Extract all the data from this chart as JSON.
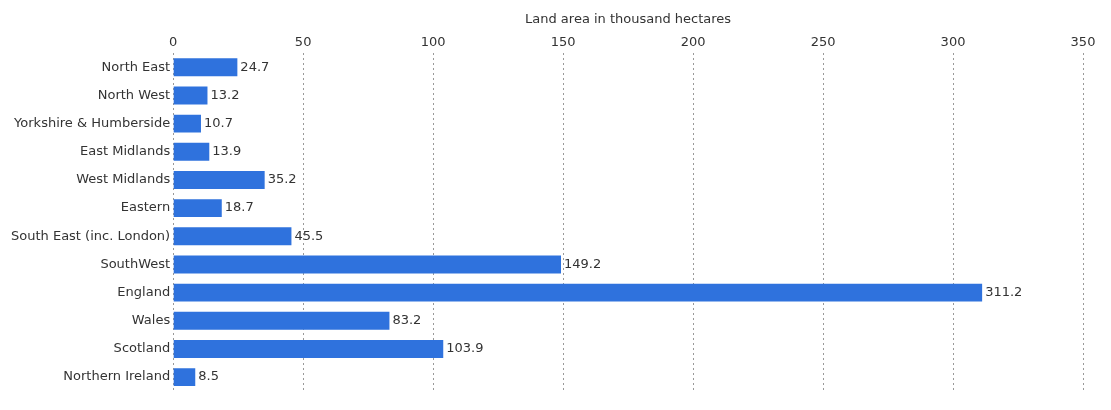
{
  "chart_data": {
    "type": "bar",
    "orientation": "horizontal",
    "xlabel": "Land area in thousand hectares",
    "categories": [
      "North East",
      "North West",
      "Yorkshire & Humberside",
      "East Midlands",
      "West Midlands",
      "Eastern",
      "South East (inc. London)",
      "SouthWest",
      "England",
      "Wales",
      "Scotland",
      "Northern Ireland"
    ],
    "values": [
      24.7,
      13.2,
      10.7,
      13.9,
      35.2,
      18.7,
      45.5,
      149.2,
      311.2,
      83.2,
      103.9,
      8.5
    ],
    "color": "#2f72dd",
    "xlim": [
      0,
      350
    ],
    "xticks": [
      0,
      50,
      100,
      150,
      200,
      250,
      300,
      350
    ],
    "grid": "x",
    "line_style": "dotted",
    "data_labels": true,
    "legend": false
  }
}
